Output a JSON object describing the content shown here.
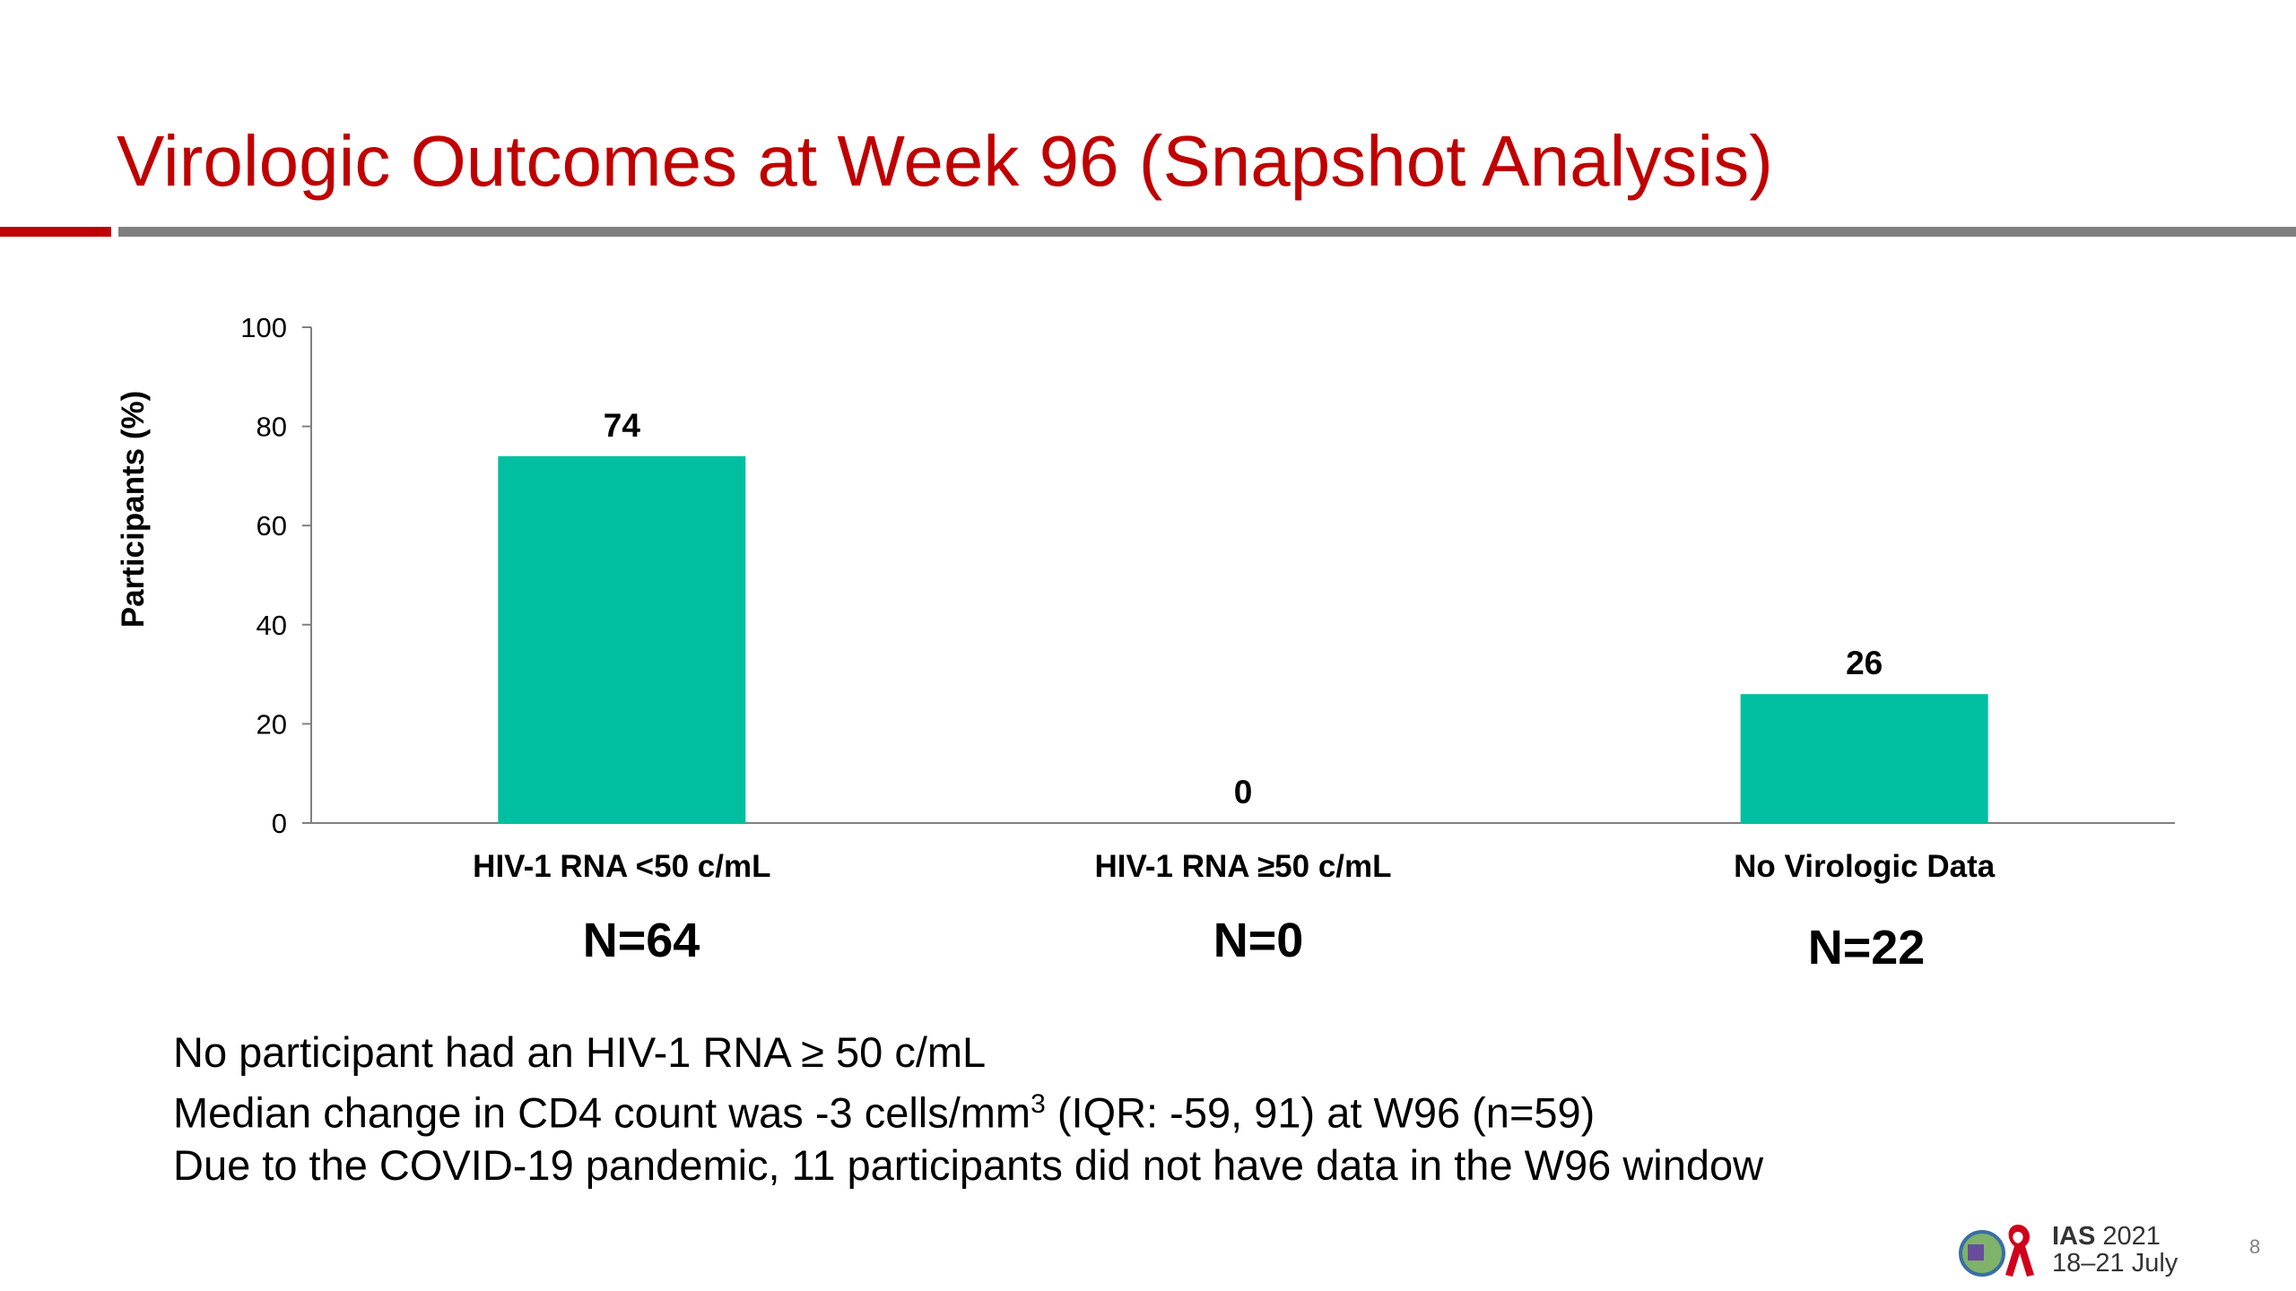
{
  "title": "Virologic Outcomes at Week 96 (Snapshot Analysis)",
  "chart_data": {
    "type": "bar",
    "title": "",
    "xlabel": "",
    "ylabel": "Participants (%)",
    "ylim": [
      0,
      100
    ],
    "yticks": [
      0,
      20,
      40,
      60,
      80,
      100
    ],
    "grid": false,
    "categories": [
      "HIV-1 RNA <50 c/mL",
      "HIV-1 RNA ≥50 c/mL",
      "No Virologic Data"
    ],
    "values": [
      74,
      0,
      26
    ],
    "data_labels": [
      "74",
      "0",
      "26"
    ],
    "bar_color": "#00bfa0"
  },
  "n_labels": [
    "N=64",
    "N=0",
    "N=22"
  ],
  "notes": [
    "No participant had an HIV-1 RNA ≥ 50 c/mL",
    "Median change in CD4 count was -3 cells/mm",
    "3",
    " (IQR: -59, 91) at W96 (n=59)",
    "Due to the COVID-19 pandemic, 11 participants did not have data in the W96 window"
  ],
  "footer": {
    "logo_brand": "IAS",
    "logo_year": "2021",
    "logo_dates": "18–21 July",
    "page_number": "8"
  },
  "colors": {
    "title": "#c00000",
    "accent_rule": "#c00000",
    "rule": "#7f7f7f",
    "bar": "#00bfa0"
  }
}
